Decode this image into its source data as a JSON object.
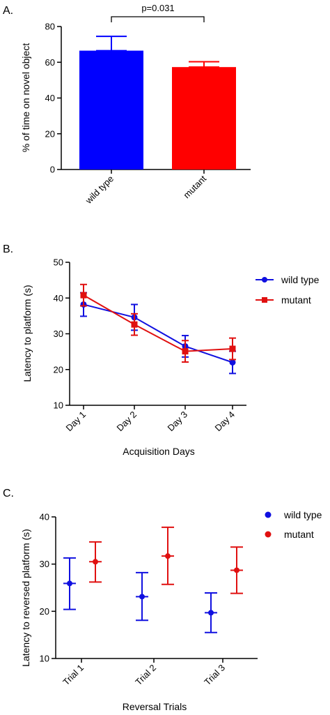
{
  "chart_data": [
    {
      "panel_label": "A.",
      "type": "bar",
      "categories": [
        "wild type",
        "mutant"
      ],
      "values": [
        66.5,
        57.3
      ],
      "error": [
        8.0,
        3.0
      ],
      "colors": [
        "#0000ff",
        "#ff0000"
      ],
      "ylabel": "% of time on novel object",
      "xlabel": "",
      "ylim": [
        0,
        80
      ],
      "yticks": [
        0,
        20,
        40,
        60,
        80
      ],
      "annotation": "p=0.031",
      "legend": false,
      "grid": false
    },
    {
      "panel_label": "B.",
      "type": "line",
      "categories": [
        "Day 1",
        "Day 2",
        "Day 3",
        "Day 4"
      ],
      "xlabel": "Acquisition Days",
      "ylabel": "Latency to platform (s)",
      "ylim": [
        10,
        50
      ],
      "yticks": [
        10,
        20,
        30,
        40,
        50
      ],
      "series": [
        {
          "name": "wild type",
          "color": "#1010e0",
          "marker": "circle",
          "values": [
            38.2,
            34.6,
            26.5,
            22.0
          ],
          "error": [
            3.3,
            3.6,
            3.0,
            3.1
          ]
        },
        {
          "name": "mutant",
          "color": "#e01010",
          "marker": "square",
          "values": [
            40.8,
            32.6,
            25.1,
            25.8
          ],
          "error": [
            3.0,
            3.0,
            3.0,
            3.0
          ]
        }
      ],
      "legend": "top-right",
      "grid": false
    },
    {
      "panel_label": "C.",
      "type": "scatter",
      "categories": [
        "Trial 1",
        "Trial 2",
        "Trial 3"
      ],
      "xlabel": "Reversal Trials",
      "ylabel": "Latency to reversed platform (s)",
      "ylim": [
        10,
        40
      ],
      "yticks": [
        10,
        20,
        30,
        40
      ],
      "series": [
        {
          "name": "wild type",
          "color": "#1010e0",
          "values": [
            25.9,
            23.1,
            19.7
          ],
          "upper": [
            31.3,
            28.2,
            23.9
          ],
          "lower": [
            20.4,
            18.1,
            15.5
          ]
        },
        {
          "name": "mutant",
          "color": "#e01010",
          "values": [
            30.5,
            31.7,
            28.7
          ],
          "upper": [
            34.7,
            37.8,
            33.6
          ],
          "lower": [
            26.2,
            25.7,
            23.8
          ]
        }
      ],
      "legend": "top-right",
      "grid": false
    }
  ]
}
